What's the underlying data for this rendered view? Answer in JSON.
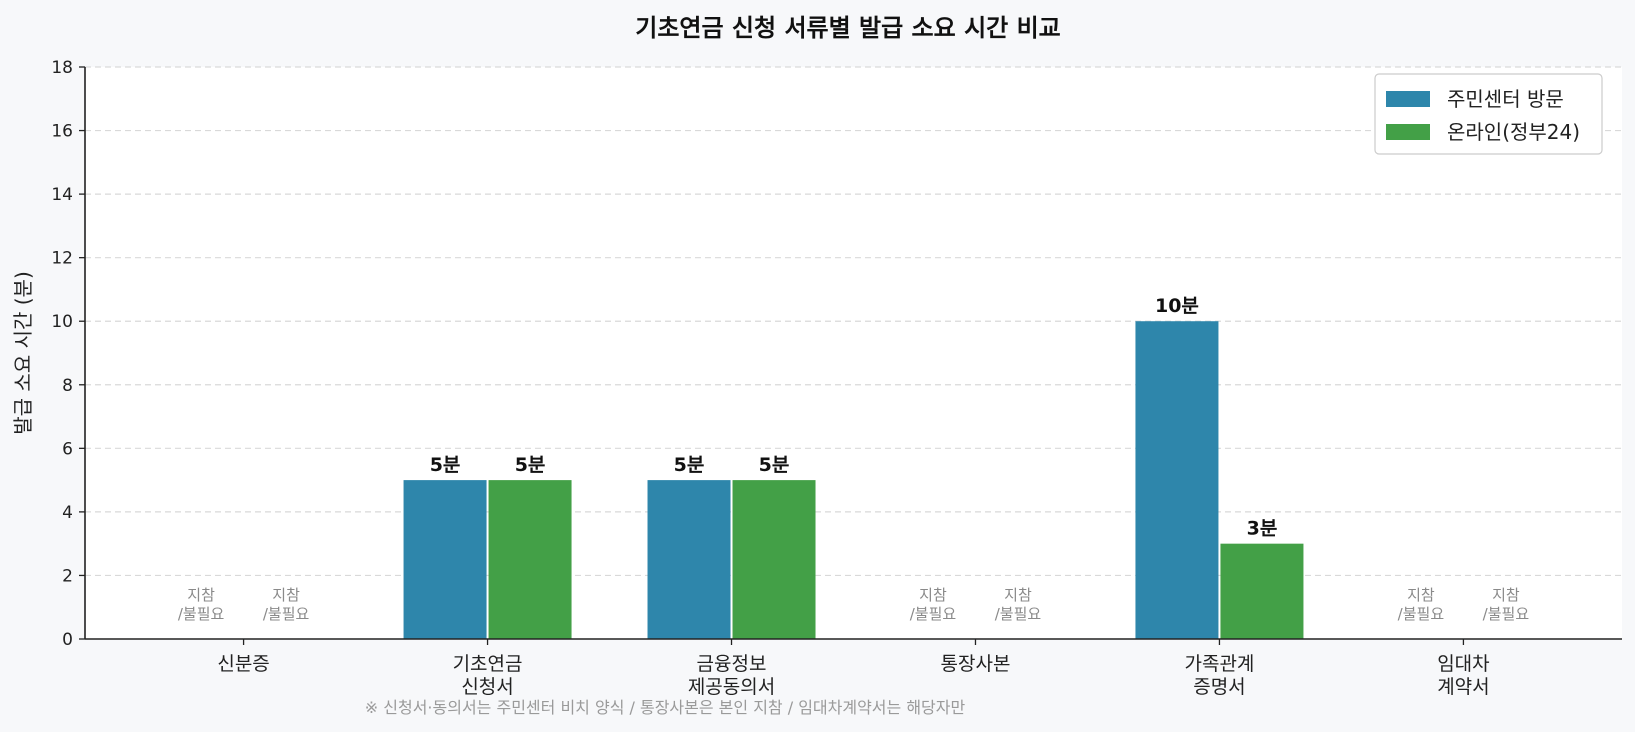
{
  "chart_data": {
    "type": "bar",
    "title": "기초연금 신청 서류별 발급 소요 시간 비교",
    "ylabel": "발급 소요 시간 (분)",
    "xlabel": "",
    "ylim": [
      0,
      18
    ],
    "yticks": [
      0,
      2,
      4,
      6,
      8,
      10,
      12,
      14,
      16,
      18
    ],
    "grid": "horizontal-dashed",
    "legend_position": "top-right",
    "categories": [
      [
        "신분증"
      ],
      [
        "기초연금",
        "신청서"
      ],
      [
        "금융정보",
        "제공동의서"
      ],
      [
        "통장사본"
      ],
      [
        "가족관계",
        "증명서"
      ],
      [
        "임대차",
        "계약서"
      ]
    ],
    "series": [
      {
        "name": "주민센터 방문",
        "color": "#2e86ab",
        "values": [
          null,
          5,
          5,
          null,
          10,
          null
        ],
        "labels": [
          "지참\n/불필요",
          "5분",
          "5분",
          "지참\n/불필요",
          "10분",
          "지참\n/불필요"
        ]
      },
      {
        "name": "온라인(정부24)",
        "color": "#43a047",
        "values": [
          null,
          5,
          5,
          null,
          3,
          null
        ],
        "labels": [
          "지참\n/불필요",
          "5분",
          "5분",
          "지참\n/불필요",
          "3분",
          "지참\n/불필요"
        ]
      }
    ],
    "footnote": "※ 신청서·동의서는 주민센터 비치 양식 / 통장사본은 본인 지참 / 임대차계약서는 해당자만"
  }
}
